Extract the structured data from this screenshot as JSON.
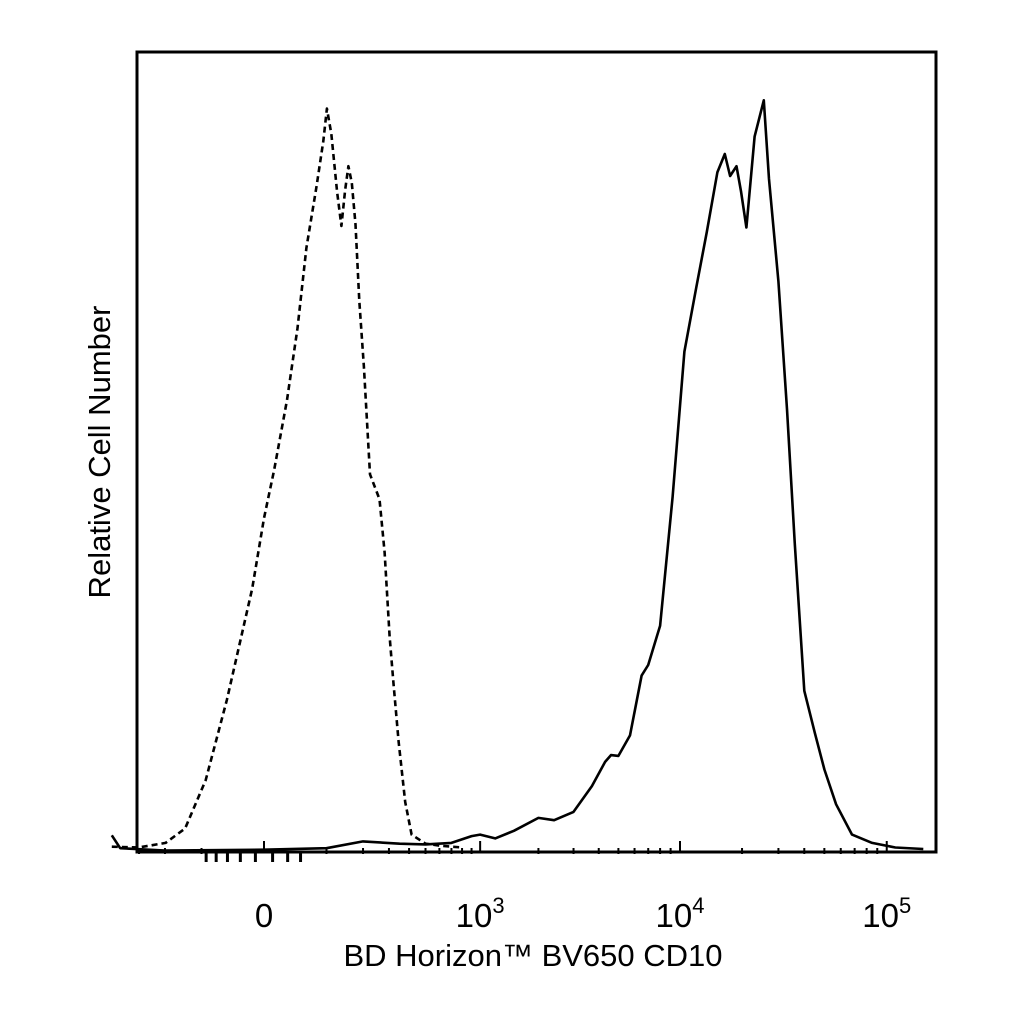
{
  "chart_data": {
    "type": "line",
    "title": "",
    "xlabel": "BD Horizon™ BV650 CD10",
    "ylabel": "Relative Cell Number",
    "x_scale": "biexponential",
    "grid": false,
    "legend": "none",
    "xlim": [
      -450,
      250000
    ],
    "ylim": [
      0,
      1
    ],
    "x_ticks": [
      {
        "value": 0,
        "base": "0",
        "exp": ""
      },
      {
        "value": 1000,
        "base": "10",
        "exp": "3"
      },
      {
        "value": 10000,
        "base": "10",
        "exp": "4"
      },
      {
        "value": 100000,
        "base": "10",
        "exp": "5"
      }
    ],
    "series": [
      {
        "style": "dashed",
        "color": "#000000",
        "points": [
          [
            -441,
            0.007
          ],
          [
            -302,
            0.006
          ],
          [
            -198,
            0.012
          ],
          [
            -140,
            0.031
          ],
          [
            -91,
            0.095
          ],
          [
            -51,
            0.201
          ],
          [
            -14,
            0.348
          ],
          [
            0,
            0.441
          ],
          [
            12,
            0.505
          ],
          [
            29,
            0.597
          ],
          [
            45,
            0.692
          ],
          [
            60,
            0.798
          ],
          [
            79,
            0.879
          ],
          [
            93,
            0.939
          ],
          [
            101,
            0.982
          ],
          [
            111,
            0.949
          ],
          [
            125,
            0.872
          ],
          [
            136,
            0.827
          ],
          [
            146,
            0.874
          ],
          [
            155,
            0.906
          ],
          [
            165,
            0.884
          ],
          [
            176,
            0.829
          ],
          [
            188,
            0.728
          ],
          [
            203,
            0.641
          ],
          [
            224,
            0.499
          ],
          [
            260,
            0.466
          ],
          [
            281,
            0.396
          ],
          [
            303,
            0.285
          ],
          [
            320,
            0.224
          ],
          [
            345,
            0.146
          ],
          [
            379,
            0.066
          ],
          [
            414,
            0.023
          ],
          [
            500,
            0.011
          ],
          [
            620,
            0.008
          ],
          [
            800,
            0.006
          ]
        ]
      },
      {
        "style": "solid",
        "color": "#000000",
        "points": [
          [
            -441,
            0.022
          ],
          [
            -393,
            0.005
          ],
          [
            -200,
            0.002
          ],
          [
            0,
            0.003
          ],
          [
            100,
            0.005
          ],
          [
            200,
            0.014
          ],
          [
            350,
            0.011
          ],
          [
            500,
            0.01
          ],
          [
            700,
            0.012
          ],
          [
            900,
            0.021
          ],
          [
            1000,
            0.023
          ],
          [
            1200,
            0.018
          ],
          [
            1500,
            0.028
          ],
          [
            2000,
            0.045
          ],
          [
            2400,
            0.042
          ],
          [
            3000,
            0.053
          ],
          [
            3700,
            0.087
          ],
          [
            4300,
            0.119
          ],
          [
            4600,
            0.128
          ],
          [
            5000,
            0.127
          ],
          [
            5700,
            0.154
          ],
          [
            6500,
            0.233
          ],
          [
            7000,
            0.247
          ],
          [
            8000,
            0.299
          ],
          [
            9200,
            0.469
          ],
          [
            10500,
            0.661
          ],
          [
            12000,
            0.746
          ],
          [
            13500,
            0.819
          ],
          [
            15200,
            0.898
          ],
          [
            16500,
            0.922
          ],
          [
            17500,
            0.893
          ],
          [
            18800,
            0.906
          ],
          [
            19800,
            0.872
          ],
          [
            21000,
            0.825
          ],
          [
            23000,
            0.945
          ],
          [
            25500,
            0.993
          ],
          [
            27000,
            0.889
          ],
          [
            30000,
            0.754
          ],
          [
            33000,
            0.585
          ],
          [
            36000,
            0.407
          ],
          [
            40000,
            0.213
          ],
          [
            45000,
            0.157
          ],
          [
            50000,
            0.109
          ],
          [
            57000,
            0.063
          ],
          [
            68000,
            0.023
          ],
          [
            85000,
            0.012
          ],
          [
            110000,
            0.006
          ],
          [
            150000,
            0.004
          ]
        ]
      }
    ]
  }
}
